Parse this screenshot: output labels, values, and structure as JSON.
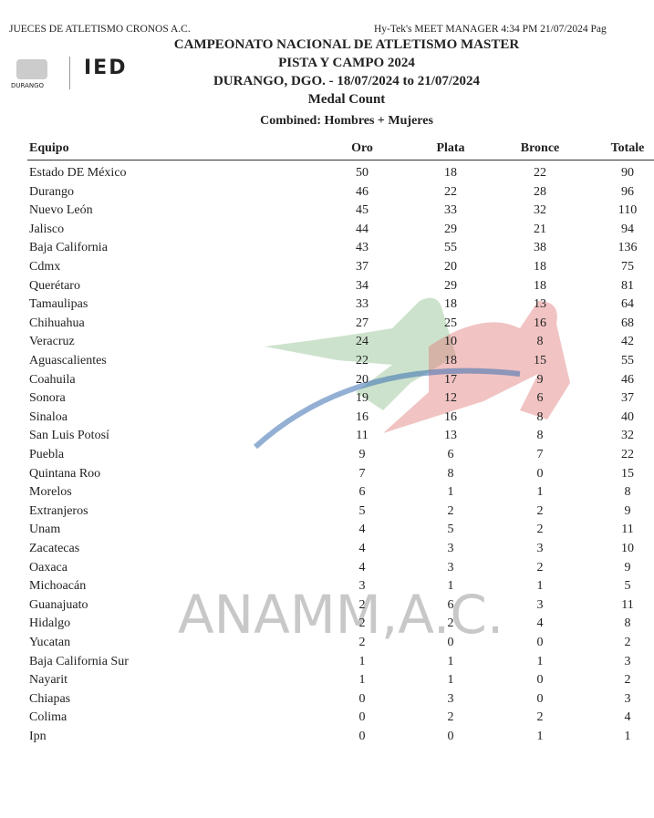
{
  "header": {
    "left": "JUECES DE ATLETISMO CRONOS A.C.",
    "right": "Hy-Tek's MEET MANAGER  4:34 PM  21/07/2024  Pag",
    "logo_city": "DURANGO",
    "logo_org": "IED",
    "title": "CAMPEONATO NACIONAL DE ATLETISMO MASTER",
    "subtitle": "PISTA Y CAMPO 2024",
    "location": "DURANGO, DGO.  - 18/07/2024 to 21/07/2024",
    "report": "Medal Count",
    "combined": "Combined: Hombres + Mujeres"
  },
  "watermark": "ANAMM,A.C.",
  "table": {
    "columns": [
      "Equipo",
      "Oro",
      "Plata",
      "Bronce",
      "Totale"
    ],
    "rows": [
      [
        "Estado DE México",
        50,
        18,
        22,
        90
      ],
      [
        "Durango",
        46,
        22,
        28,
        96
      ],
      [
        "Nuevo León",
        45,
        33,
        32,
        110
      ],
      [
        "Jalisco",
        44,
        29,
        21,
        94
      ],
      [
        "Baja California",
        43,
        55,
        38,
        136
      ],
      [
        "Cdmx",
        37,
        20,
        18,
        75
      ],
      [
        "Querétaro",
        34,
        29,
        18,
        81
      ],
      [
        "Tamaulipas",
        33,
        18,
        13,
        64
      ],
      [
        "Chihuahua",
        27,
        25,
        16,
        68
      ],
      [
        "Veracruz",
        24,
        10,
        8,
        42
      ],
      [
        "Aguascalientes",
        22,
        18,
        15,
        55
      ],
      [
        "Coahuila",
        20,
        17,
        9,
        46
      ],
      [
        "Sonora",
        19,
        12,
        6,
        37
      ],
      [
        "Sinaloa",
        16,
        16,
        8,
        40
      ],
      [
        "San Luis Potosí",
        11,
        13,
        8,
        32
      ],
      [
        "Puebla",
        9,
        6,
        7,
        22
      ],
      [
        "Quintana Roo",
        7,
        8,
        0,
        15
      ],
      [
        "Morelos",
        6,
        1,
        1,
        8
      ],
      [
        "Extranjeros",
        5,
        2,
        2,
        9
      ],
      [
        "Unam",
        4,
        5,
        2,
        11
      ],
      [
        "Zacatecas",
        4,
        3,
        3,
        10
      ],
      [
        "Oaxaca",
        4,
        3,
        2,
        9
      ],
      [
        "Michoacán",
        3,
        1,
        1,
        5
      ],
      [
        "Guanajuato",
        2,
        6,
        3,
        11
      ],
      [
        "Hidalgo",
        2,
        2,
        4,
        8
      ],
      [
        "Yucatan",
        2,
        0,
        0,
        2
      ],
      [
        "Baja California Sur",
        1,
        1,
        1,
        3
      ],
      [
        "Nayarit",
        1,
        1,
        0,
        2
      ],
      [
        "Chiapas",
        0,
        3,
        0,
        3
      ],
      [
        "Colima",
        0,
        2,
        2,
        4
      ],
      [
        "Ipn",
        0,
        0,
        1,
        1
      ]
    ]
  }
}
